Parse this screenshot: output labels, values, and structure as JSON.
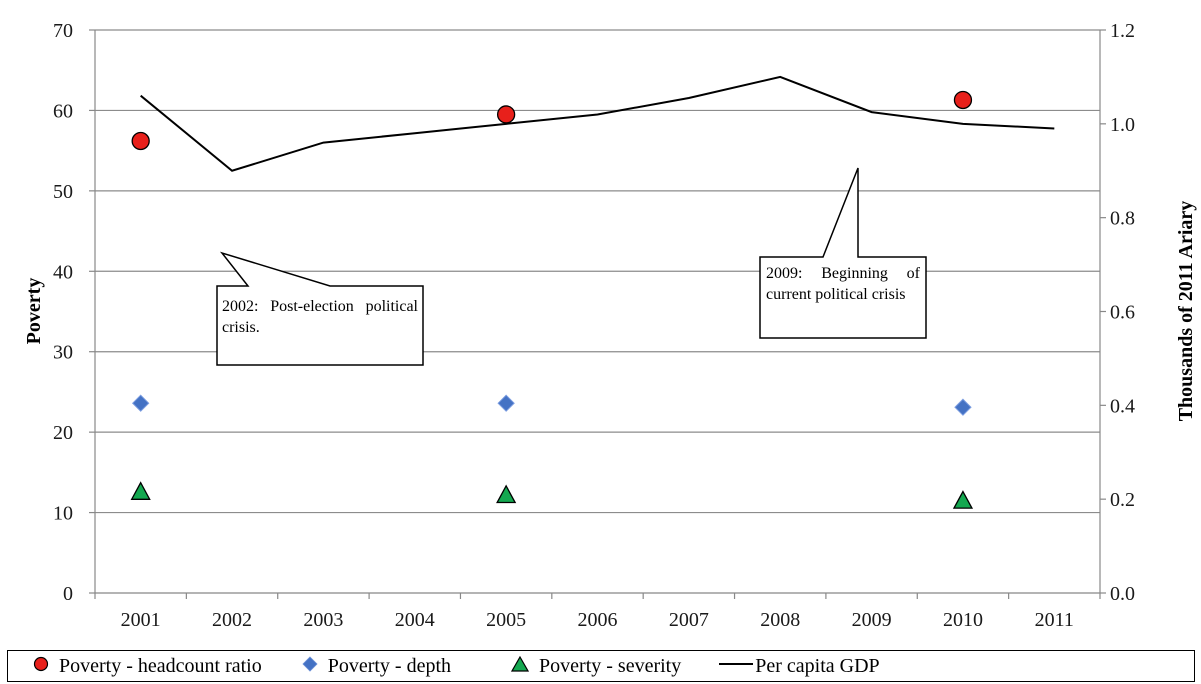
{
  "chart_data": {
    "type": "line",
    "categories": [
      "2001",
      "2002",
      "2003",
      "2004",
      "2005",
      "2006",
      "2007",
      "2008",
      "2009",
      "2010",
      "2011"
    ],
    "left_axis": {
      "title": "Poverty",
      "range": [
        0,
        70
      ],
      "ticks": [
        "0",
        "10",
        "20",
        "30",
        "40",
        "50",
        "60",
        "70"
      ]
    },
    "right_axis": {
      "title": "Thousands of 2011 Ariary",
      "range": [
        0.0,
        1.2
      ],
      "ticks": [
        "0.0",
        "0.2",
        "0.4",
        "0.6",
        "0.8",
        "1.0",
        "1.2"
      ]
    },
    "grid": true,
    "series": [
      {
        "name": "Poverty - headcount ratio",
        "axis": "left",
        "marker": "circle",
        "color": "#e8201b",
        "points": [
          {
            "x": "2001",
            "y": 56.2
          },
          {
            "x": "2005",
            "y": 59.5
          },
          {
            "x": "2010",
            "y": 61.3
          }
        ]
      },
      {
        "name": "Poverty - depth",
        "axis": "left",
        "marker": "diamond",
        "color": "#4472c4",
        "points": [
          {
            "x": "2001",
            "y": 23.6
          },
          {
            "x": "2005",
            "y": 23.6
          },
          {
            "x": "2010",
            "y": 23.1
          }
        ]
      },
      {
        "name": "Poverty - severity",
        "axis": "left",
        "marker": "triangle",
        "color": "#14a850",
        "points": [
          {
            "x": "2001",
            "y": 12.6
          },
          {
            "x": "2005",
            "y": 12.2
          },
          {
            "x": "2010",
            "y": 11.5
          }
        ]
      },
      {
        "name": "Per capita GDP",
        "axis": "right",
        "marker": "line",
        "color": "#000000",
        "values": [
          1.06,
          0.9,
          0.96,
          0.98,
          1.0,
          1.02,
          1.055,
          1.1,
          1.025,
          1.0,
          0.99
        ]
      }
    ],
    "annotations": [
      {
        "text": "2002: Post-election political crisis."
      },
      {
        "text": "2009: Beginning of current political crisis"
      }
    ],
    "legend_position": "bottom"
  }
}
